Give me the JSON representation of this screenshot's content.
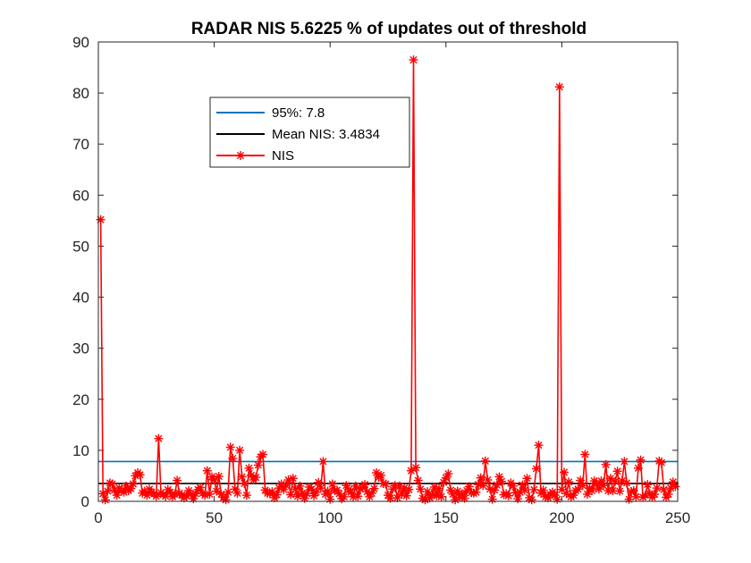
{
  "chart_data": {
    "type": "line",
    "title": "RADAR NIS 5.6225 % of updates out of threshold",
    "xlabel": "",
    "ylabel": "",
    "xlim": [
      0,
      250
    ],
    "ylim": [
      0,
      90
    ],
    "xticks": [
      0,
      50,
      100,
      150,
      200,
      250
    ],
    "yticks": [
      0,
      10,
      20,
      30,
      40,
      50,
      60,
      70,
      80,
      90
    ],
    "xtick_labels": [
      "0",
      "50",
      "100",
      "150",
      "200",
      "250"
    ],
    "ytick_labels": [
      "0",
      "10",
      "20",
      "30",
      "40",
      "50",
      "60",
      "70",
      "80",
      "90"
    ],
    "grid": false,
    "legend_position": "upper-left inside",
    "series": [
      {
        "name": "95%: 7.8",
        "kind": "hline",
        "color": "#0072BD",
        "y": 7.8,
        "x_range": [
          0,
          250
        ]
      },
      {
        "name": "Mean NIS: 3.4834",
        "kind": "hline",
        "color": "#000000",
        "y": 3.4834,
        "x_range": [
          0,
          250
        ]
      },
      {
        "name": "NIS",
        "kind": "line-marker",
        "color": "#FF0000",
        "marker": "asterisk",
        "x": [
          1,
          2,
          3,
          4,
          5,
          6,
          7,
          8,
          9,
          10,
          11,
          12,
          13,
          14,
          15,
          16,
          17,
          18,
          19,
          20,
          21,
          22,
          23,
          24,
          25,
          26,
          27,
          28,
          29,
          30,
          31,
          32,
          33,
          34,
          35,
          36,
          37,
          38,
          39,
          40,
          41,
          42,
          43,
          44,
          45,
          46,
          47,
          48,
          49,
          50,
          51,
          52,
          53,
          54,
          55,
          56,
          57,
          58,
          59,
          60,
          61,
          62,
          63,
          64,
          65,
          66,
          67,
          68,
          69,
          70,
          71,
          72,
          73,
          74,
          75,
          76,
          77,
          78,
          79,
          80,
          81,
          82,
          83,
          84,
          85,
          86,
          87,
          88,
          89,
          90,
          91,
          92,
          93,
          94,
          95,
          96,
          97,
          98,
          99,
          100,
          101,
          102,
          103,
          104,
          105,
          106,
          107,
          108,
          109,
          110,
          111,
          112,
          113,
          114,
          115,
          116,
          117,
          118,
          119,
          120,
          121,
          122,
          123,
          124,
          125,
          126,
          127,
          128,
          129,
          130,
          131,
          132,
          133,
          134,
          135,
          136,
          137,
          138,
          139,
          140,
          141,
          142,
          143,
          144,
          145,
          146,
          147,
          148,
          149,
          150,
          151,
          152,
          153,
          154,
          155,
          156,
          157,
          158,
          159,
          160,
          161,
          162,
          163,
          164,
          165,
          166,
          167,
          168,
          169,
          170,
          171,
          172,
          173,
          174,
          175,
          176,
          177,
          178,
          179,
          180,
          181,
          182,
          183,
          184,
          185,
          186,
          187,
          188,
          189,
          190,
          191,
          192,
          193,
          194,
          195,
          196,
          197,
          198,
          199,
          200,
          201,
          202,
          203,
          204,
          205,
          206,
          207,
          208,
          209,
          210,
          211,
          212,
          213,
          214,
          215,
          216,
          217,
          218,
          219,
          220,
          221,
          222,
          223,
          224,
          225,
          226,
          227,
          228,
          229,
          230,
          231,
          232,
          233,
          234,
          235,
          236,
          237,
          238,
          239,
          240,
          241,
          242,
          243,
          244,
          245,
          246,
          247,
          248,
          249
        ],
        "y": [
          55.2,
          1.5,
          0.3,
          2.0,
          3.6,
          3.4,
          2.2,
          1.2,
          2.6,
          2.0,
          1.8,
          3.0,
          2.1,
          2.5,
          3.4,
          5.0,
          5.6,
          5.2,
          1.6,
          2.0,
          1.2,
          2.4,
          1.8,
          1.5,
          1.0,
          12.3,
          1.7,
          1.3,
          1.0,
          2.3,
          1.8,
          0.9,
          1.4,
          4.1,
          1.6,
          1.2,
          0.7,
          1.1,
          2.1,
          1.4,
          0.5,
          1.5,
          2.3,
          2.7,
          1.6,
          1.2,
          6.0,
          1.4,
          4.8,
          4.2,
          2.0,
          4.9,
          1.4,
          0.8,
          0.3,
          1.8,
          10.6,
          8.4,
          2.4,
          1.6,
          10.0,
          4.8,
          3.5,
          1.2,
          6.5,
          5.1,
          4.2,
          4.7,
          7.1,
          8.7,
          9.2,
          2.2,
          1.6,
          1.5,
          1.9,
          0.7,
          1.3,
          2.6,
          3.4,
          2.3,
          3.1,
          4.2,
          1.3,
          4.5,
          2.4,
          1.0,
          3.0,
          1.6,
          0.6,
          1.5,
          2.8,
          2.4,
          1.1,
          1.8,
          3.7,
          2.6,
          7.8,
          1.4,
          2.0,
          0.4,
          3.4,
          2.1,
          2.2,
          1.5,
          0.5,
          0.9,
          3.1,
          2.3,
          1.8,
          0.9,
          3.0,
          1.0,
          2.4,
          2.7,
          3.3,
          1.9,
          0.9,
          1.6,
          2.5,
          5.6,
          4.7,
          5.1,
          3.5,
          3.4,
          1.2,
          0.6,
          2.4,
          3.1,
          0.7,
          3.0,
          1.4,
          2.6,
          1.1,
          2.3,
          6.0,
          86.5,
          6.6,
          4.1,
          2.4,
          0.6,
          0.3,
          1.9,
          0.7,
          1.3,
          2.8,
          1.1,
          2.5,
          0.9,
          3.7,
          4.6,
          5.4,
          2.2,
          1.4,
          0.3,
          2.0,
          0.8,
          1.5,
          0.6,
          2.1,
          2.9,
          1.7,
          1.6,
          1.8,
          3.3,
          4.6,
          3.1,
          7.9,
          4.2,
          2.4,
          0.4,
          2.2,
          3.2,
          4.8,
          3.9,
          1.3,
          1.5,
          1.1,
          3.6,
          3.0,
          1.7,
          0.5,
          1.8,
          3.2,
          2.2,
          4.5,
          0.7,
          0.3,
          2.3,
          6.4,
          11.0,
          1.6,
          2.2,
          0.9,
          0.7,
          1.3,
          1.8,
          1.2,
          0.4,
          81.2,
          2.3,
          5.7,
          1.5,
          3.8,
          0.9,
          1.2,
          2.1,
          2.4,
          4.1,
          3.1,
          9.2,
          1.4,
          2.6,
          2.1,
          4.0,
          3.4,
          2.4,
          4.0,
          3.1,
          7.2,
          2.1,
          4.5,
          2.1,
          3.9,
          5.9,
          2.0,
          4.0,
          7.8,
          3.6,
          0.4,
          1.9,
          2.1,
          0.9,
          6.5,
          8.1,
          0.8,
          1.2,
          3.3,
          1.5,
          0.8,
          1.4,
          2.6,
          7.9,
          7.6,
          2.3,
          0.8,
          1.4,
          2.6,
          3.8,
          2.9
        ]
      }
    ]
  }
}
